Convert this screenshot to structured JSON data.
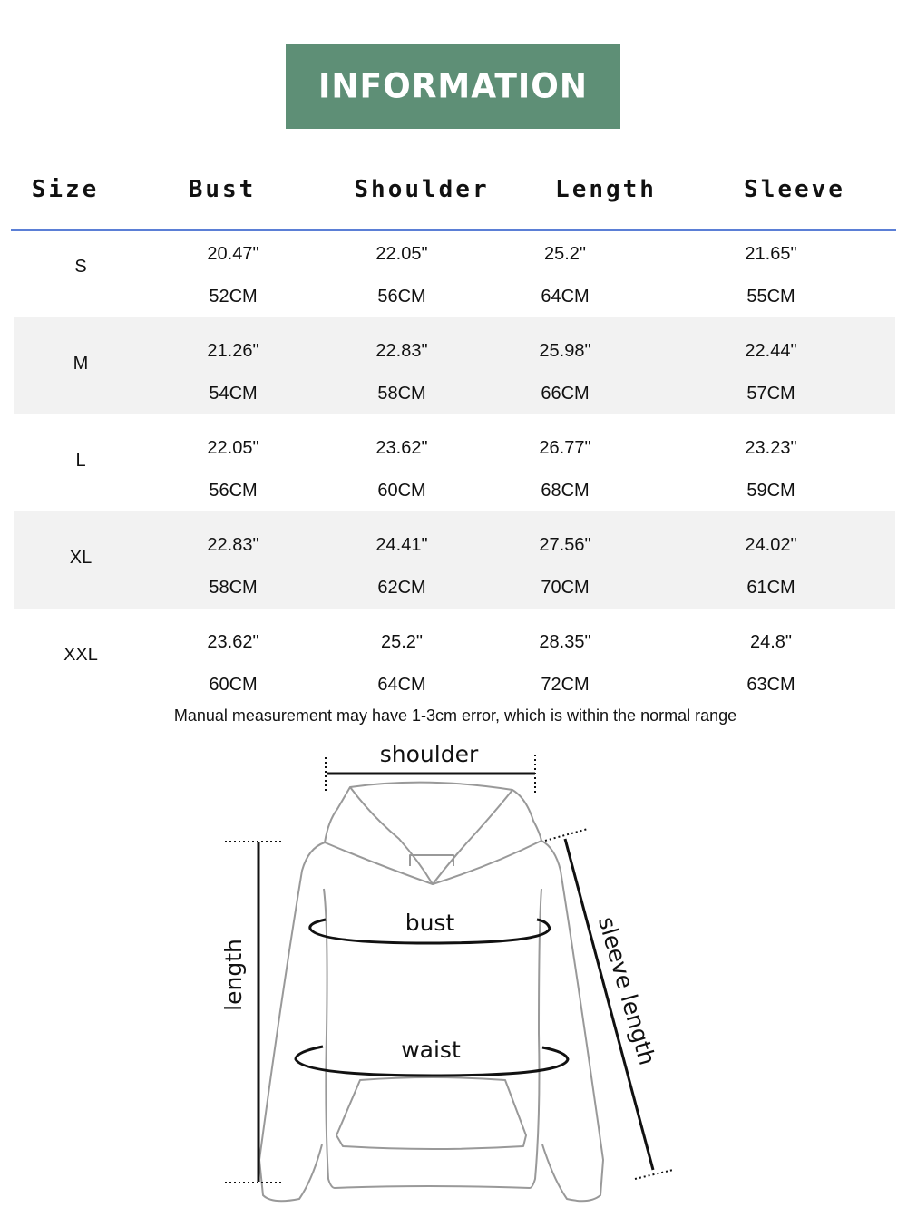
{
  "banner": {
    "title": "INFORMATION",
    "color": "#5e8f76"
  },
  "table": {
    "headers": [
      "Size",
      "Bust",
      "Shoulder",
      "Length",
      "Sleeve"
    ],
    "rule_color": "#5b7fd6",
    "rows": [
      {
        "size": "S",
        "bust_in": "20.47\"",
        "bust_cm": "52CM",
        "shoulder_in": "22.05\"",
        "shoulder_cm": "56CM",
        "length_in": "25.2\"",
        "length_cm": "64CM",
        "sleeve_in": "21.65\"",
        "sleeve_cm": "55CM"
      },
      {
        "size": "M",
        "bust_in": "21.26\"",
        "bust_cm": "54CM",
        "shoulder_in": "22.83\"",
        "shoulder_cm": "58CM",
        "length_in": "25.98\"",
        "length_cm": "66CM",
        "sleeve_in": "22.44\"",
        "sleeve_cm": "57CM"
      },
      {
        "size": "L",
        "bust_in": "22.05\"",
        "bust_cm": "56CM",
        "shoulder_in": "23.62\"",
        "shoulder_cm": "60CM",
        "length_in": "26.77\"",
        "length_cm": "68CM",
        "sleeve_in": "23.23\"",
        "sleeve_cm": "59CM"
      },
      {
        "size": "XL",
        "bust_in": "22.83\"",
        "bust_cm": "58CM",
        "shoulder_in": "24.41\"",
        "shoulder_cm": "62CM",
        "length_in": "27.56\"",
        "length_cm": "70CM",
        "sleeve_in": "24.02\"",
        "sleeve_cm": "61CM"
      },
      {
        "size": "XXL",
        "bust_in": "23.62\"",
        "bust_cm": "60CM",
        "shoulder_in": "25.2\"",
        "shoulder_cm": "64CM",
        "length_in": "28.35\"",
        "length_cm": "72CM",
        "sleeve_in": "24.8\"",
        "sleeve_cm": "63CM"
      }
    ]
  },
  "note": "Manual measurement may have 1-3cm error, which is within the normal range",
  "diagram": {
    "icon": "hoodie-measurement-diagram",
    "labels": {
      "shoulder": "shoulder",
      "bust": "bust",
      "waist": "waist",
      "length": "length",
      "sleeve": "sleeve length"
    }
  }
}
